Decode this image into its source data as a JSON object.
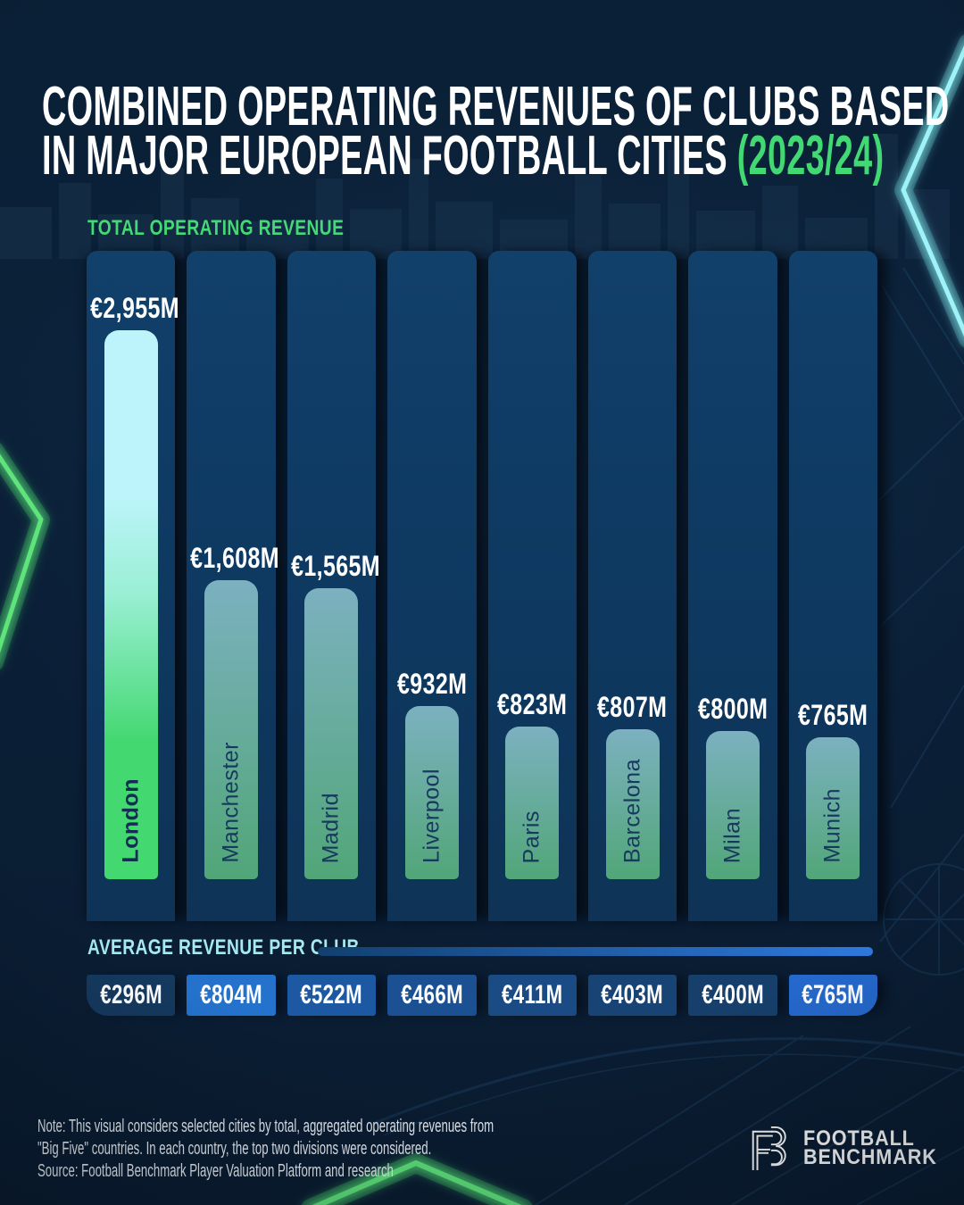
{
  "title": {
    "line1": "COMBINED OPERATING REVENUES OF CLUBS BASED",
    "line2_text": "IN MAJOR EUROPEAN FOOTBALL CITIES ",
    "line2_year": "(2023/24)"
  },
  "sections": {
    "total_label": "TOTAL OPERATING REVENUE",
    "average_label": "AVERAGE REVENUE PER CLUB"
  },
  "cities": [
    {
      "name": "London",
      "total_label": "€2,955M",
      "total_value": 2955,
      "avg_label": "€296M",
      "avg_value": 296,
      "chip_color": "#15395f",
      "highlight": true
    },
    {
      "name": "Manchester",
      "total_label": "€1,608M",
      "total_value": 1608,
      "avg_label": "€804M",
      "avg_value": 804,
      "chip_color": "#2472cc",
      "highlight": false
    },
    {
      "name": "Madrid",
      "total_label": "€1,565M",
      "total_value": 1565,
      "avg_label": "€522M",
      "avg_value": 522,
      "chip_color": "#1d58a2",
      "highlight": false
    },
    {
      "name": "Liverpool",
      "total_label": "€932M",
      "total_value": 932,
      "avg_label": "€466M",
      "avg_value": 466,
      "chip_color": "#1b5093",
      "highlight": false
    },
    {
      "name": "Paris",
      "total_label": "€823M",
      "total_value": 823,
      "avg_label": "€411M",
      "avg_value": 411,
      "chip_color": "#1a4b85",
      "highlight": false
    },
    {
      "name": "Barcelona",
      "total_label": "€807M",
      "total_value": 807,
      "avg_label": "€403M",
      "avg_value": 403,
      "chip_color": "#174474",
      "highlight": false
    },
    {
      "name": "Milan",
      "total_label": "€800M",
      "total_value": 800,
      "avg_label": "€400M",
      "avg_value": 400,
      "chip_color": "#163f6b",
      "highlight": false
    },
    {
      "name": "Munich",
      "total_label": "€765M",
      "total_value": 765,
      "avg_label": "€765M",
      "avg_value": 765,
      "chip_color": "#2569cd",
      "highlight": false
    }
  ],
  "chart_data": {
    "type": "bar",
    "title": "Combined operating revenues of clubs based in major European football cities (2023/24)",
    "categories": [
      "London",
      "Manchester",
      "Madrid",
      "Liverpool",
      "Paris",
      "Barcelona",
      "Milan",
      "Munich"
    ],
    "series": [
      {
        "name": "Total operating revenue",
        "values": [
          2955,
          1608,
          1565,
          932,
          823,
          807,
          800,
          765
        ]
      },
      {
        "name": "Average revenue per club",
        "values": [
          296,
          804,
          522,
          466,
          411,
          403,
          400,
          765
        ]
      }
    ],
    "unit": "€M",
    "ylim": [
      0,
      2955
    ],
    "grid": false,
    "orientation": "vertical",
    "highlighted_category": "London"
  },
  "footer": {
    "note_line1": "Note: This visual considers selected cities by total, aggregated operating revenues from",
    "note_line2": "\"Big Five\" countries. In each country, the top two divisions were considered.",
    "note_line3": "Source: Football Benchmark Player Valuation Platform and research",
    "logo_line1": "FOOTBALL",
    "logo_line2": "BENCHMARK"
  },
  "colors": {
    "accent_green": "#45d876",
    "accent_cyan": "#a6e9f1",
    "bar_highlight_top": "#bdf4fb",
    "bar_highlight_mid": "#9aefd4",
    "bar_highlight_bottom": "#43d870",
    "bar_default_top": "#7cb1c0",
    "bar_default_bottom": "#51a678",
    "column_bg": "#0e3a63",
    "avg_line_start": "#12406f",
    "avg_line_end": "#2e7ade"
  }
}
